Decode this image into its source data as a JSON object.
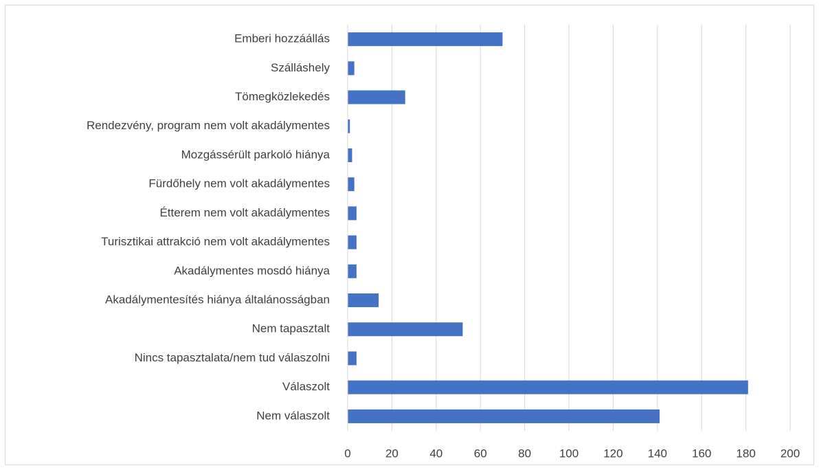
{
  "chart_data": {
    "type": "barh",
    "categories": [
      "Emberi hozzáállás",
      "Szálláshely",
      "Tömegközlekedés",
      "Rendezvény, program nem volt akadálymentes",
      "Mozgássérült parkoló hiánya",
      "Fürdőhely nem volt akadálymentes",
      "Étterem nem volt akadálymentes",
      "Turisztikai attrakció nem volt akadálymentes",
      "Akadálymentes mosdó hiánya",
      "Akadálymentesítés hiánya általánosságban",
      "Nem tapasztalt",
      "Nincs tapasztalata/nem tud válaszolni",
      "Válaszolt",
      "Nem válaszolt"
    ],
    "values": [
      70,
      3,
      26,
      1,
      2,
      3,
      4,
      4,
      4,
      14,
      52,
      4,
      181,
      141
    ],
    "color": "#4472c4",
    "xlim": [
      0,
      200
    ],
    "xticks": [
      0,
      20,
      40,
      60,
      80,
      100,
      120,
      140,
      160,
      180,
      200
    ],
    "grid": true
  }
}
